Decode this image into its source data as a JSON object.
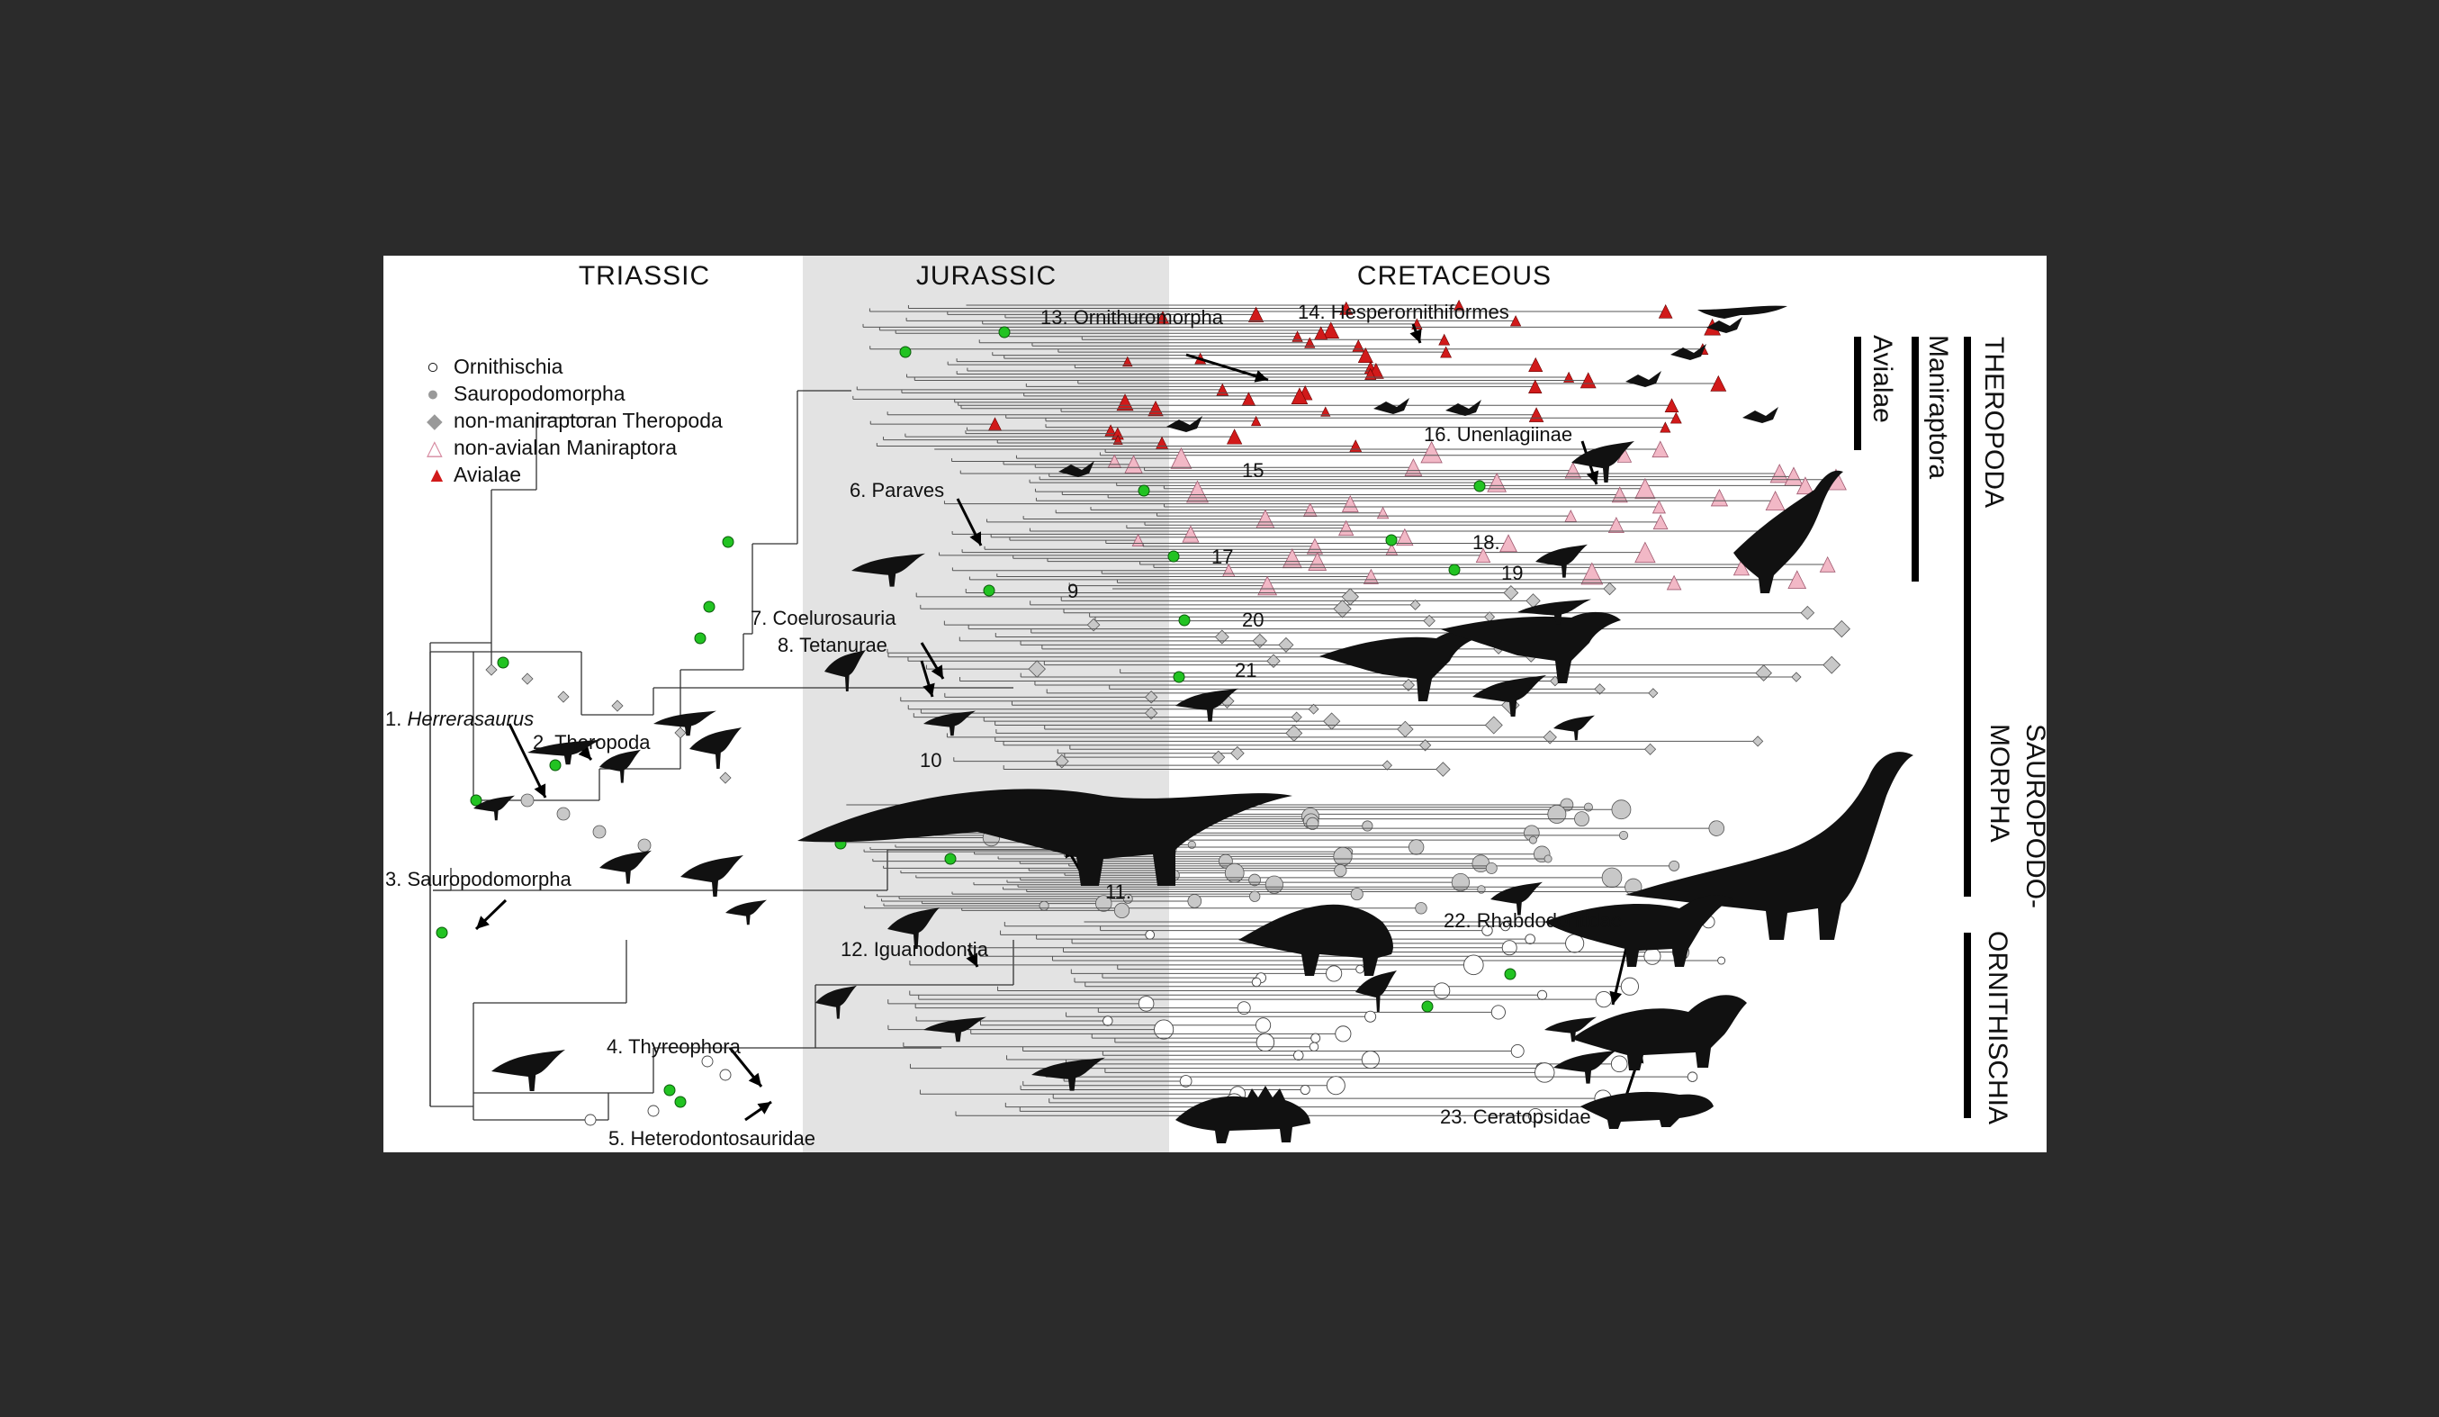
{
  "periods": [
    "TRIASSIC",
    "JURASSIC",
    "CRETACEOUS"
  ],
  "legend": [
    {
      "label": "Ornithischia",
      "marker": "open-circle",
      "color": "#ffffff"
    },
    {
      "label": "Sauropodomorpha",
      "marker": "grey-circle",
      "color": "#c8c8c8"
    },
    {
      "label": "non-maniraptoran Theropoda",
      "marker": "grey-diamond",
      "color": "#c8c8c8"
    },
    {
      "label": "non-avialan Maniraptora",
      "marker": "pink-triangle",
      "color": "#f2b8c6"
    },
    {
      "label": "Avialae",
      "marker": "red-triangle",
      "color": "#d11a1a"
    }
  ],
  "node_labels": {
    "n1_num": "1.",
    "n1_name": "Herrerasaurus",
    "n2": "2. Theropoda",
    "n3": "3. Sauropodomorpha",
    "n4": "4. Thyreophora",
    "n5": "5. Heterodontosauridae",
    "n6": "6. Paraves",
    "n7": "7. Coelurosauria",
    "n8": "8. Tetanurae",
    "n9": "9",
    "n10": "10",
    "n11": "11.",
    "n12": "12. Iguanodontia",
    "n13": "13. Ornithuromorpha",
    "n14": "14. Hesperornithiformes",
    "n15": "15",
    "n16": "16. Unenlagiinae",
    "n17": "17",
    "n18": "18.",
    "n19": "19",
    "n20": "20",
    "n21": "21",
    "n22": "22. Rhabdodontidae",
    "n23": "23. Ceratopsidae"
  },
  "clades": {
    "avialae": "Avialae",
    "maniraptora": "Maniraptora",
    "theropoda": "THEROPODA",
    "sauropodomorpha": "SAURO­PODO- MORPHA",
    "sauro_top": "SAUROPODO-",
    "sauro_bottom": "MORPHA",
    "ornith_top": "ORNITHISCHIA"
  },
  "colors": {
    "node_highlight": "#22c322",
    "avialae": "#d11a1a",
    "maniraptora": "#f2b8c6",
    "grey": "#c8c8c8",
    "band": "#e3e3e3"
  }
}
